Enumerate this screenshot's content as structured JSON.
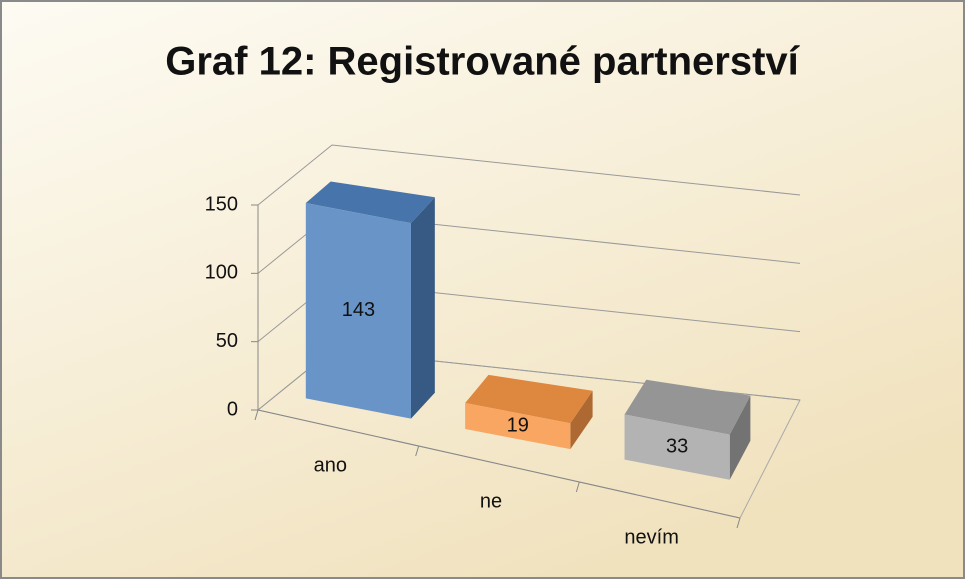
{
  "chart_data": {
    "type": "bar3d",
    "title": "Graf 12: Registrované partnerství",
    "categories": [
      "ano",
      "ne",
      "nevím"
    ],
    "values": [
      143,
      19,
      33
    ],
    "colors": [
      "#4f81bd",
      "#f79646",
      "#a5a5a5"
    ],
    "ylim": [
      0,
      150
    ],
    "yticks": [
      0,
      50,
      100,
      150
    ],
    "grid": true
  }
}
